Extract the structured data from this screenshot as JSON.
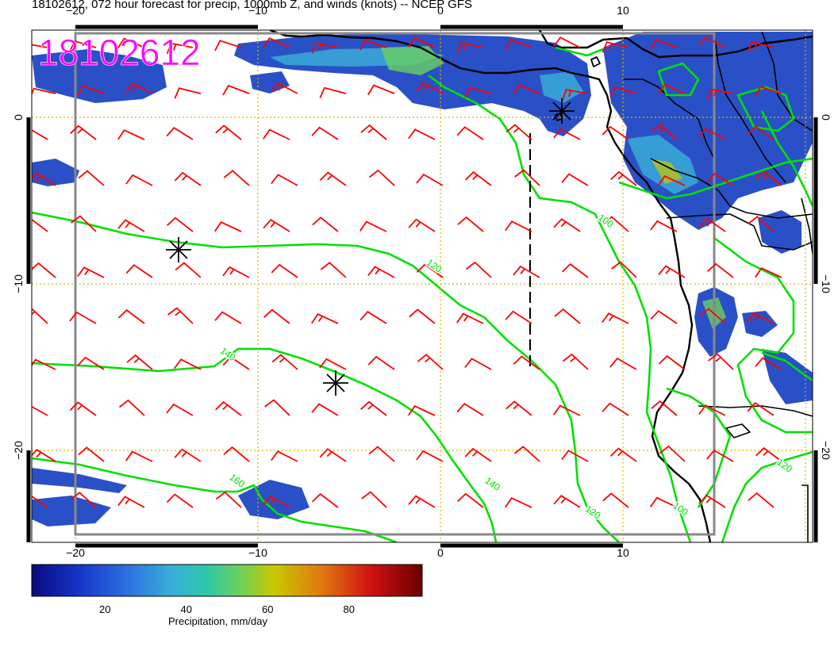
{
  "title": "18102612, 072 hour forecast for precip, 1000mb Z, and winds (knots) -- NCEP GFS",
  "stamp": "18102612",
  "lon_ticks": [
    {
      "value": -20,
      "label": "−20"
    },
    {
      "value": -10,
      "label": "−10"
    },
    {
      "value": 0,
      "label": "0"
    },
    {
      "value": 10,
      "label": "10"
    }
  ],
  "lat_ticks": [
    {
      "value": 0,
      "label": "0"
    },
    {
      "value": -10,
      "label": "−10"
    },
    {
      "value": -20,
      "label": "−20"
    }
  ],
  "contour_labels": [
    {
      "text": "100",
      "lon": 8.6,
      "lat": -6.1
    },
    {
      "text": "120",
      "lon": -0.8,
      "lat": -8.8
    },
    {
      "text": "140",
      "lon": -12.1,
      "lat": -14.1
    },
    {
      "text": "160",
      "lon": -11.6,
      "lat": -21.7
    },
    {
      "text": "140",
      "lon": 2.4,
      "lat": -21.9
    },
    {
      "text": "120",
      "lon": 7.9,
      "lat": -23.6
    },
    {
      "text": "100",
      "lon": 12.7,
      "lat": -23.4
    },
    {
      "text": "120",
      "lon": 18.4,
      "lat": -20.8
    }
  ],
  "colorbar": {
    "label": "Precipitation, mm/day",
    "ticks": [
      "20",
      "40",
      "60",
      "80"
    ],
    "tick_values": [
      20,
      40,
      60,
      80
    ],
    "range": [
      2,
      98
    ],
    "colors": [
      "#0a0a80",
      "#1535c8",
      "#2d72e0",
      "#39b0d8",
      "#2ec8a8",
      "#6ad060",
      "#c8c800",
      "#e07a10",
      "#d01010",
      "#6a0000"
    ]
  },
  "colors": {
    "contour": "#00e000",
    "barb": "#ff0000",
    "precip": "#2a50c8",
    "grid": "#d8b800",
    "coast": "#000000"
  }
}
